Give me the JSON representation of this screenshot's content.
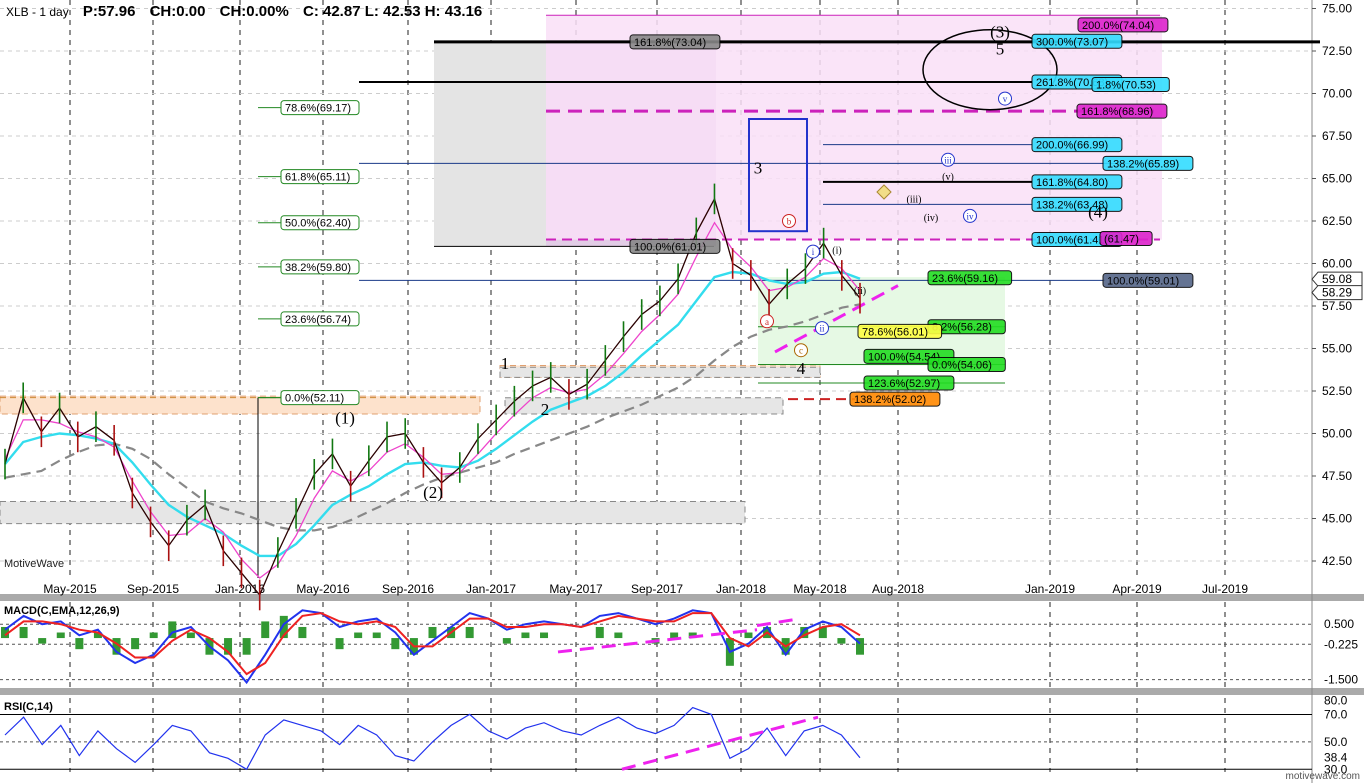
{
  "header": {
    "symbol": "XLB - 1 day",
    "price": "P:57.96",
    "change": "CH:0.00",
    "change_pct": "CH:0.00%",
    "ohlc": "C: 42.87  L: 42.53  H: 43.16"
  },
  "watermark": "MotiveWave",
  "footer_mark": "motivewave.com",
  "chart_data": [
    {
      "type": "line",
      "panel": "price",
      "ylim": [
        41.5,
        75.5
      ],
      "y_ticks": [
        "75.00",
        "72.50",
        "70.00",
        "67.50",
        "65.00",
        "62.50",
        "60.00",
        "57.50",
        "55.00",
        "52.50",
        "50.00",
        "47.50",
        "45.00",
        "42.50"
      ],
      "x_ticks": [
        "May-2015",
        "Sep-2015",
        "Jan-2016",
        "May-2016",
        "Sep-2016",
        "Jan-2017",
        "May-2017",
        "Sep-2017",
        "Jan-2018",
        "May-2018",
        "Aug-2018",
        "Jan-2019",
        "Apr-2019",
        "Jul-2019"
      ],
      "last_price_tags": [
        "59.08",
        "58.29"
      ],
      "series": [
        {
          "values": [
            48.2,
            52.1,
            50.1,
            51.5,
            49.8,
            50.4,
            49.6,
            46.5,
            44.8,
            43.4,
            44.9,
            45.8,
            43.1,
            41.8,
            40.5,
            43.0,
            45.3,
            47.6,
            48.8,
            46.9,
            48.4,
            49.8,
            50.0,
            48.3,
            47.1,
            48.0,
            49.7,
            50.8,
            51.9,
            52.8,
            53.3,
            52.3,
            52.9,
            54.3,
            55.7,
            57.0,
            57.8,
            59.1,
            61.8,
            63.8,
            60.0,
            59.3,
            57.6,
            58.8,
            59.7,
            61.2,
            59.3,
            57.96
          ]
        },
        {
          "values": [
            48.5,
            50.8,
            50.8,
            50.6,
            50.1,
            49.8,
            49.2,
            47.2,
            45.4,
            44.0,
            44.1,
            45.0,
            44.2,
            42.6,
            41.5,
            42.3,
            44.0,
            46.2,
            47.8,
            47.2,
            47.8,
            48.9,
            49.4,
            48.6,
            47.6,
            47.7,
            48.8,
            50.0,
            51.1,
            52.1,
            52.7,
            52.4,
            52.6,
            53.5,
            54.7,
            56.0,
            57.0,
            58.2,
            60.4,
            62.4,
            60.8,
            59.8,
            58.4,
            58.6,
            59.2,
            60.3,
            59.7,
            58.4
          ]
        },
        {
          "values": [
            48.2,
            49.5,
            49.8,
            50.0,
            49.9,
            49.7,
            49.4,
            48.3,
            47.0,
            45.8,
            45.1,
            44.6,
            44.1,
            43.4,
            42.8,
            42.8,
            43.5,
            44.6,
            45.8,
            46.4,
            46.9,
            47.6,
            48.2,
            48.3,
            48.1,
            48.0,
            48.4,
            49.1,
            49.9,
            50.7,
            51.4,
            51.8,
            52.2,
            52.8,
            53.6,
            54.6,
            55.5,
            56.4,
            57.8,
            59.2,
            59.5,
            59.4,
            59.0,
            58.8,
            58.9,
            59.4,
            59.5,
            59.1
          ]
        },
        {
          "values": [
            47.4,
            47.6,
            47.8,
            48.4,
            48.9,
            49.3,
            49.4,
            49.1,
            48.5,
            47.6,
            46.8,
            46.0,
            45.6,
            45.3,
            44.9,
            44.5,
            44.3,
            44.3,
            44.5,
            44.9,
            45.4,
            45.9,
            46.5,
            47.0,
            47.4,
            47.7,
            48.0,
            48.3,
            48.8,
            49.2,
            49.6,
            50.0,
            50.4,
            50.9,
            51.3,
            51.7,
            52.2,
            52.7,
            53.4,
            54.3,
            55.1,
            55.7,
            56.1,
            56.3,
            56.6,
            57.0,
            57.4,
            57.6
          ]
        }
      ]
    },
    {
      "type": "line",
      "panel": "macd",
      "title": "MACD(C,EMA,12,26,9)",
      "ylim": [
        -1.8,
        1.3
      ],
      "y_ticks": [
        "0.500",
        "-0.225",
        "-1.500"
      ],
      "series": [
        {
          "values": [
            0.3,
            0.8,
            0.5,
            0.6,
            0.1,
            0.3,
            -0.5,
            -0.9,
            -0.6,
            0.2,
            0.4,
            -0.3,
            -0.8,
            -1.6,
            -0.6,
            0.5,
            1.0,
            0.9,
            0.4,
            0.6,
            0.7,
            0.2,
            -0.6,
            -0.1,
            0.4,
            0.9,
            0.7,
            0.3,
            0.5,
            0.6,
            0.5,
            0.4,
            0.8,
            0.9,
            0.7,
            0.5,
            0.7,
            1.0,
            0.9,
            -0.5,
            -0.2,
            0.4,
            -0.6,
            0.3,
            0.6,
            0.4,
            -0.2
          ]
        },
        {
          "values": [
            0.1,
            0.6,
            0.6,
            0.5,
            0.3,
            0.2,
            -0.2,
            -0.7,
            -0.7,
            -0.1,
            0.3,
            0.0,
            -0.5,
            -1.3,
            -0.9,
            0.1,
            0.8,
            0.9,
            0.6,
            0.5,
            0.6,
            0.4,
            -0.3,
            -0.3,
            0.2,
            0.7,
            0.7,
            0.4,
            0.4,
            0.5,
            0.5,
            0.4,
            0.6,
            0.8,
            0.7,
            0.6,
            0.6,
            0.9,
            0.9,
            0.0,
            -0.3,
            0.2,
            -0.3,
            0.1,
            0.4,
            0.5,
            0.1
          ]
        }
      ]
    },
    {
      "type": "line",
      "panel": "rsi",
      "title": "RSI(C,14)",
      "ylim": [
        28,
        82
      ],
      "y_ticks": [
        "80.0",
        "70.0",
        "50.0",
        "38.4",
        "30.0"
      ],
      "series": [
        {
          "values": [
            55,
            68,
            48,
            62,
            40,
            58,
            45,
            35,
            48,
            62,
            58,
            42,
            38,
            30,
            55,
            66,
            62,
            58,
            48,
            62,
            55,
            40,
            36,
            50,
            62,
            70,
            58,
            52,
            60,
            64,
            58,
            55,
            62,
            68,
            60,
            56,
            62,
            75,
            70,
            38,
            45,
            60,
            40,
            58,
            62,
            55,
            38.4
          ]
        }
      ]
    }
  ],
  "annotations": {
    "fib_left": [
      "78.6%(69.17)",
      "61.8%(65.11)",
      "50.0%(62.40)",
      "38.2%(59.80)",
      "23.6%(56.74)",
      "0.0%(52.11)"
    ],
    "fib_boxes": [
      {
        "text": "161.8%(73.04)",
        "price": 73.04,
        "bg": "#888888",
        "fg": "#000000"
      },
      {
        "text": "100.0%(61.01)",
        "price": 61.01,
        "bg": "#888888",
        "fg": "#000000"
      },
      {
        "text": "300.0%(73.07)",
        "price": 73.07,
        "bg": "#33ddff",
        "fg": "#000000"
      },
      {
        "text": "200.0%(74.04)",
        "price": 74.04,
        "bg": "#dd22cc",
        "fg": "#000000"
      },
      {
        "text": "261.8%(70.68)",
        "price": 70.68,
        "bg": "#33ddff",
        "fg": "#000000"
      },
      {
        "text": "1.8%(70.53)",
        "price": 70.53,
        "bg": "#33ddff",
        "fg": "#000000"
      },
      {
        "text": "161.8%(68.96)",
        "price": 68.96,
        "bg": "#dd22cc",
        "fg": "#000000"
      },
      {
        "text": "200.0%(66.99)",
        "price": 66.99,
        "bg": "#33ddff",
        "fg": "#000000"
      },
      {
        "text": "138.2%(65.89)",
        "price": 65.89,
        "bg": "#33ddff",
        "fg": "#000000"
      },
      {
        "text": "161.8%(64.80)",
        "price": 64.8,
        "bg": "#33ddff",
        "fg": "#000000"
      },
      {
        "text": "138.2%(63.48)",
        "price": 63.48,
        "bg": "#33ddff",
        "fg": "#000000"
      },
      {
        "text": "100.0%(61.41)",
        "price": 61.41,
        "bg": "#33ddff",
        "fg": "#000000"
      },
      {
        "text": "(61.47)",
        "price": 61.47,
        "bg": "#dd22cc",
        "fg": "#000000"
      },
      {
        "text": "23.6%(59.16)",
        "price": 59.16,
        "bg": "#22dd22",
        "fg": "#000000"
      },
      {
        "text": "100.0%(59.01)",
        "price": 59.01,
        "bg": "#556688",
        "fg": "#000000"
      },
      {
        "text": "8.2%(56.28)",
        "price": 56.28,
        "bg": "#22dd22",
        "fg": "#000000"
      },
      {
        "text": "78.6%(56.01)",
        "price": 56.01,
        "bg": "#ffff44",
        "fg": "#000000"
      },
      {
        "text": "100.0%(54.54)",
        "price": 54.54,
        "bg": "#22dd22",
        "fg": "#000000"
      },
      {
        "text": "0.0%(54.06)",
        "price": 54.06,
        "bg": "#22dd22",
        "fg": "#000000"
      },
      {
        "text": "123.6%(52.97)",
        "price": 52.97,
        "bg": "#22dd22",
        "fg": "#000000"
      },
      {
        "text": "138.2%(52.02)",
        "price": 52.02,
        "bg": "#ff8800",
        "fg": "#000000"
      }
    ],
    "wave_labels": [
      {
        "text": "1",
        "price": 53.8
      },
      {
        "text": "2",
        "price": 51.1
      },
      {
        "text": "3",
        "price": 65.3
      },
      {
        "text": "4",
        "price": 53.5
      },
      {
        "text": "5",
        "price": 72.3
      },
      {
        "text": "(1)",
        "price": 50.6
      },
      {
        "text": "(2)",
        "price": 46.2
      },
      {
        "text": "(3)",
        "price": 73.3
      },
      {
        "text": "(4)",
        "price": 62.7
      },
      {
        "text": "(i)",
        "price": 60.6
      },
      {
        "text": "(ii)",
        "price": 58.2
      },
      {
        "text": "(iii)",
        "price": 63.6
      },
      {
        "text": "(iv)",
        "price": 62.5
      },
      {
        "text": "(v)",
        "price": 64.9
      }
    ],
    "circle_labels": [
      {
        "text": "a",
        "price": 56.6,
        "color": "#cc2222"
      },
      {
        "text": "b",
        "price": 62.5,
        "color": "#cc2222"
      },
      {
        "text": "c",
        "price": 54.9,
        "color": "#aa6600"
      },
      {
        "text": "i",
        "price": 60.7,
        "color": "#2233cc"
      },
      {
        "text": "ii",
        "price": 56.2,
        "color": "#2233cc"
      },
      {
        "text": "iii",
        "price": 66.1,
        "color": "#2233cc"
      },
      {
        "text": "iv",
        "price": 62.8,
        "color": "#2233cc"
      },
      {
        "text": "v",
        "price": 69.7,
        "color": "#2233cc"
      }
    ]
  }
}
